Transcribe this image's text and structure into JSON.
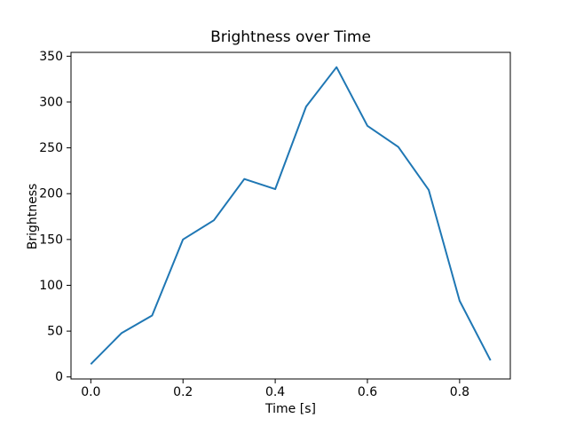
{
  "chart_data": {
    "type": "line",
    "title": "Brightness over Time",
    "xlabel": "Time [s]",
    "ylabel": "Brightness",
    "x": [
      0.0,
      0.067,
      0.133,
      0.2,
      0.267,
      0.333,
      0.4,
      0.467,
      0.533,
      0.6,
      0.667,
      0.733,
      0.8,
      0.867
    ],
    "y": [
      14,
      48,
      67,
      150,
      171,
      216,
      205,
      295,
      338,
      274,
      251,
      204,
      83,
      18
    ],
    "xlim": [
      -0.043,
      0.91
    ],
    "ylim": [
      -2.2,
      354.2
    ],
    "xticks": [
      0.0,
      0.2,
      0.4,
      0.6,
      0.8
    ],
    "xtick_labels": [
      "0.0",
      "0.2",
      "0.4",
      "0.6",
      "0.8"
    ],
    "yticks": [
      0,
      50,
      100,
      150,
      200,
      250,
      300,
      350
    ],
    "ytick_labels": [
      "0",
      "50",
      "100",
      "150",
      "200",
      "250",
      "300",
      "350"
    ],
    "line_color": "#1f77b4",
    "axis_color": "#000000",
    "background_color": "#ffffff",
    "grid": false,
    "legend": "none"
  }
}
